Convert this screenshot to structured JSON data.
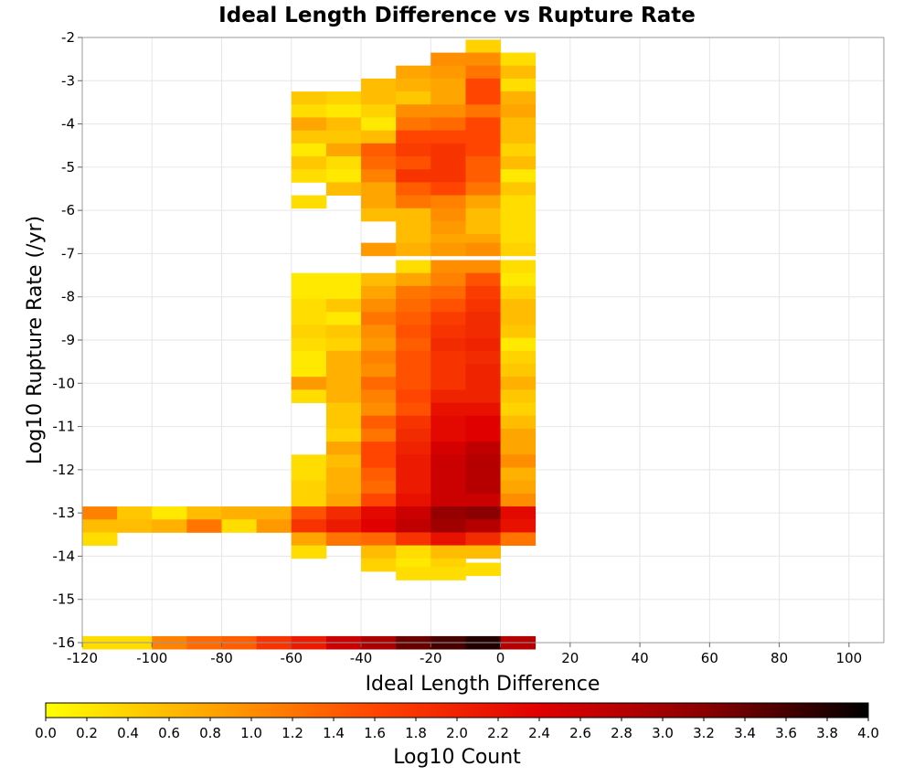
{
  "chart_data": {
    "type": "heatmap",
    "title": "Ideal Length Difference vs Rupture Rate",
    "xlabel": "Ideal Length Difference",
    "ylabel": "Log10 Rupture Rate (/yr)",
    "xlim": [
      -120,
      110
    ],
    "ylim": [
      -16,
      -2
    ],
    "x_ticks": [
      "-120",
      "-100",
      "-80",
      "-60",
      "-40",
      "-20",
      "0",
      "20",
      "40",
      "60",
      "80",
      "100"
    ],
    "y_ticks": [
      "-2",
      "-3",
      "-4",
      "-5",
      "-6",
      "-7",
      "-8",
      "-9",
      "-10",
      "-11",
      "-12",
      "-13",
      "-14",
      "-15",
      "-16"
    ],
    "grid": true,
    "cell_width": 10,
    "cell_height": 0.3,
    "colorbar": {
      "label": "Log10 Count",
      "min": 0,
      "max": 4,
      "ticks": [
        "0.0",
        "0.2",
        "0.4",
        "0.6",
        "0.8",
        "1.0",
        "1.2",
        "1.4",
        "1.6",
        "1.8",
        "2.0",
        "2.2",
        "2.4",
        "2.6",
        "2.8",
        "3.0",
        "3.2",
        "3.4",
        "3.6",
        "3.8",
        "4.0"
      ],
      "colors": [
        "#ffff00",
        "#ffa500",
        "#ff4500",
        "#e00000",
        "#8b0000",
        "#000000"
      ]
    },
    "columns": [
      {
        "x": -120,
        "cells": [
          [
            -13.0,
            1.1
          ],
          [
            -13.3,
            0.6
          ],
          [
            -13.6,
            0.3
          ],
          [
            -16.0,
            0.3
          ]
        ]
      },
      {
        "x": -110,
        "cells": [
          [
            -13.0,
            0.5
          ],
          [
            -13.3,
            0.6
          ],
          [
            -16.0,
            0.3
          ]
        ]
      },
      {
        "x": -100,
        "cells": [
          [
            -13.0,
            0.2
          ],
          [
            -13.3,
            0.7
          ],
          [
            -16.0,
            1.1
          ]
        ]
      },
      {
        "x": -90,
        "cells": [
          [
            -13.0,
            0.6
          ],
          [
            -13.3,
            1.2
          ],
          [
            -16.0,
            1.3
          ]
        ]
      },
      {
        "x": -80,
        "cells": [
          [
            -13.0,
            0.7
          ],
          [
            -13.3,
            0.3
          ],
          [
            -16.0,
            1.4
          ]
        ]
      },
      {
        "x": -70,
        "cells": [
          [
            -13.0,
            0.7
          ],
          [
            -13.3,
            0.9
          ],
          [
            -16.0,
            1.8
          ]
        ]
      },
      {
        "x": -60,
        "cells": [
          [
            -3.4,
            0.5
          ],
          [
            -3.7,
            0.3
          ],
          [
            -4.0,
            0.8
          ],
          [
            -4.3,
            0.5
          ],
          [
            -4.6,
            0.2
          ],
          [
            -4.9,
            0.5
          ],
          [
            -5.2,
            0.3
          ],
          [
            -5.8,
            0.3
          ],
          [
            -7.6,
            0.2
          ],
          [
            -7.9,
            0.2
          ],
          [
            -8.2,
            0.3
          ],
          [
            -8.5,
            0.3
          ],
          [
            -8.8,
            0.4
          ],
          [
            -9.1,
            0.3
          ],
          [
            -9.4,
            0.2
          ],
          [
            -9.7,
            0.2
          ],
          [
            -10.0,
            0.9
          ],
          [
            -10.3,
            0.3
          ],
          [
            -11.8,
            0.3
          ],
          [
            -12.1,
            0.3
          ],
          [
            -12.4,
            0.4
          ],
          [
            -12.7,
            0.4
          ],
          [
            -13.0,
            1.5
          ],
          [
            -13.3,
            1.8
          ],
          [
            -13.6,
            0.8
          ],
          [
            -13.9,
            0.3
          ],
          [
            -16.0,
            2.1
          ]
        ]
      },
      {
        "x": -50,
        "cells": [
          [
            -3.4,
            0.4
          ],
          [
            -3.7,
            0.2
          ],
          [
            -4.0,
            0.6
          ],
          [
            -4.3,
            0.5
          ],
          [
            -4.6,
            0.8
          ],
          [
            -4.9,
            0.3
          ],
          [
            -5.2,
            0.2
          ],
          [
            -5.5,
            0.6
          ],
          [
            -7.6,
            0.2
          ],
          [
            -7.9,
            0.2
          ],
          [
            -8.2,
            0.5
          ],
          [
            -8.5,
            0.2
          ],
          [
            -8.8,
            0.5
          ],
          [
            -9.1,
            0.4
          ],
          [
            -9.4,
            0.7
          ],
          [
            -9.7,
            0.7
          ],
          [
            -10.0,
            0.7
          ],
          [
            -10.3,
            0.7
          ],
          [
            -10.6,
            0.5
          ],
          [
            -10.9,
            0.5
          ],
          [
            -11.2,
            0.4
          ],
          [
            -11.5,
            0.8
          ],
          [
            -11.8,
            0.6
          ],
          [
            -12.1,
            0.7
          ],
          [
            -12.4,
            0.7
          ],
          [
            -12.7,
            0.8
          ],
          [
            -13.0,
            1.9
          ],
          [
            -13.3,
            2.1
          ],
          [
            -13.6,
            1.2
          ],
          [
            -16.0,
            2.6
          ]
        ]
      },
      {
        "x": -40,
        "cells": [
          [
            -3.1,
            0.6
          ],
          [
            -3.4,
            0.6
          ],
          [
            -3.7,
            0.4
          ],
          [
            -4.0,
            0.2
          ],
          [
            -4.3,
            0.6
          ],
          [
            -4.6,
            1.4
          ],
          [
            -4.9,
            1.3
          ],
          [
            -5.2,
            1.1
          ],
          [
            -5.5,
            0.8
          ],
          [
            -5.8,
            0.8
          ],
          [
            -6.1,
            0.6
          ],
          [
            -6.9,
            0.9
          ],
          [
            -7.6,
            0.6
          ],
          [
            -7.9,
            0.8
          ],
          [
            -8.2,
            1.0
          ],
          [
            -8.5,
            1.2
          ],
          [
            -8.8,
            1.0
          ],
          [
            -9.1,
            0.9
          ],
          [
            -9.4,
            1.1
          ],
          [
            -9.7,
            1.0
          ],
          [
            -10.0,
            1.3
          ],
          [
            -10.3,
            1.1
          ],
          [
            -10.6,
            1.0
          ],
          [
            -10.9,
            1.4
          ],
          [
            -11.2,
            1.2
          ],
          [
            -11.5,
            1.6
          ],
          [
            -11.8,
            1.6
          ],
          [
            -12.1,
            1.4
          ],
          [
            -12.4,
            1.3
          ],
          [
            -12.7,
            1.6
          ],
          [
            -13.0,
            2.3
          ],
          [
            -13.3,
            2.4
          ],
          [
            -13.6,
            1.3
          ],
          [
            -13.9,
            0.6
          ],
          [
            -14.2,
            0.4
          ],
          [
            -16.0,
            2.9
          ]
        ]
      },
      {
        "x": -30,
        "cells": [
          [
            -2.8,
            0.8
          ],
          [
            -3.1,
            0.7
          ],
          [
            -3.4,
            0.5
          ],
          [
            -3.7,
            1.0
          ],
          [
            -4.0,
            1.2
          ],
          [
            -4.3,
            1.6
          ],
          [
            -4.6,
            1.7
          ],
          [
            -4.9,
            1.5
          ],
          [
            -5.2,
            1.8
          ],
          [
            -5.5,
            1.4
          ],
          [
            -5.8,
            1.2
          ],
          [
            -6.1,
            0.6
          ],
          [
            -6.4,
            0.6
          ],
          [
            -6.7,
            0.6
          ],
          [
            -6.9,
            0.7
          ],
          [
            -7.3,
            0.3
          ],
          [
            -7.6,
            0.8
          ],
          [
            -7.9,
            1.2
          ],
          [
            -8.2,
            1.3
          ],
          [
            -8.5,
            1.4
          ],
          [
            -8.8,
            1.5
          ],
          [
            -9.1,
            1.4
          ],
          [
            -9.4,
            1.5
          ],
          [
            -9.7,
            1.5
          ],
          [
            -10.0,
            1.5
          ],
          [
            -10.3,
            1.6
          ],
          [
            -10.6,
            1.5
          ],
          [
            -10.9,
            1.8
          ],
          [
            -11.2,
            1.9
          ],
          [
            -11.5,
            2.0
          ],
          [
            -11.8,
            2.1
          ],
          [
            -12.1,
            2.1
          ],
          [
            -12.4,
            2.1
          ],
          [
            -12.7,
            2.2
          ],
          [
            -13.0,
            2.6
          ],
          [
            -13.3,
            2.7
          ],
          [
            -13.6,
            1.8
          ],
          [
            -13.9,
            0.3
          ],
          [
            -14.2,
            0.2
          ],
          [
            -14.4,
            0.3
          ],
          [
            -16.0,
            3.4
          ]
        ]
      },
      {
        "x": -20,
        "cells": [
          [
            -2.5,
            1.0
          ],
          [
            -2.8,
            0.9
          ],
          [
            -3.1,
            0.8
          ],
          [
            -3.4,
            0.8
          ],
          [
            -3.7,
            1.0
          ],
          [
            -4.0,
            1.3
          ],
          [
            -4.3,
            1.6
          ],
          [
            -4.6,
            1.8
          ],
          [
            -4.9,
            1.8
          ],
          [
            -5.2,
            1.8
          ],
          [
            -5.5,
            1.6
          ],
          [
            -5.8,
            1.1
          ],
          [
            -6.1,
            1.0
          ],
          [
            -6.4,
            0.9
          ],
          [
            -6.7,
            0.8
          ],
          [
            -6.9,
            0.9
          ],
          [
            -7.3,
            1.0
          ],
          [
            -7.6,
            1.1
          ],
          [
            -7.9,
            1.3
          ],
          [
            -8.2,
            1.5
          ],
          [
            -8.5,
            1.7
          ],
          [
            -8.8,
            1.8
          ],
          [
            -9.1,
            1.9
          ],
          [
            -9.4,
            1.8
          ],
          [
            -9.7,
            1.8
          ],
          [
            -10.0,
            1.8
          ],
          [
            -10.3,
            2.0
          ],
          [
            -10.6,
            2.2
          ],
          [
            -10.9,
            2.3
          ],
          [
            -11.2,
            2.3
          ],
          [
            -11.5,
            2.5
          ],
          [
            -11.8,
            2.6
          ],
          [
            -12.1,
            2.6
          ],
          [
            -12.4,
            2.6
          ],
          [
            -12.7,
            2.6
          ],
          [
            -13.0,
            3.1
          ],
          [
            -13.3,
            3.0
          ],
          [
            -13.6,
            2.2
          ],
          [
            -13.9,
            0.6
          ],
          [
            -14.2,
            0.4
          ],
          [
            -14.4,
            0.3
          ],
          [
            -16.0,
            3.6
          ]
        ]
      },
      {
        "x": -10,
        "cells": [
          [
            -2.2,
            0.4
          ],
          [
            -2.5,
            1.0
          ],
          [
            -2.8,
            1.2
          ],
          [
            -3.1,
            1.6
          ],
          [
            -3.4,
            1.6
          ],
          [
            -3.7,
            1.2
          ],
          [
            -4.0,
            1.6
          ],
          [
            -4.3,
            1.6
          ],
          [
            -4.6,
            1.6
          ],
          [
            -4.9,
            1.4
          ],
          [
            -5.2,
            1.4
          ],
          [
            -5.5,
            1.2
          ],
          [
            -5.8,
            0.8
          ],
          [
            -6.1,
            0.6
          ],
          [
            -6.4,
            0.6
          ],
          [
            -6.7,
            0.8
          ],
          [
            -6.9,
            1.0
          ],
          [
            -7.3,
            1.0
          ],
          [
            -7.6,
            1.5
          ],
          [
            -7.9,
            1.7
          ],
          [
            -8.2,
            1.8
          ],
          [
            -8.5,
            1.9
          ],
          [
            -8.8,
            1.9
          ],
          [
            -9.1,
            2.0
          ],
          [
            -9.4,
            1.9
          ],
          [
            -9.7,
            2.0
          ],
          [
            -10.0,
            2.0
          ],
          [
            -10.3,
            2.0
          ],
          [
            -10.6,
            2.2
          ],
          [
            -10.9,
            2.4
          ],
          [
            -11.2,
            2.4
          ],
          [
            -11.5,
            2.7
          ],
          [
            -11.8,
            2.8
          ],
          [
            -12.1,
            2.8
          ],
          [
            -12.4,
            2.8
          ],
          [
            -12.7,
            2.6
          ],
          [
            -13.0,
            3.2
          ],
          [
            -13.3,
            2.8
          ],
          [
            -13.6,
            1.9
          ],
          [
            -13.9,
            0.6
          ],
          [
            -14.3,
            0.3
          ],
          [
            -16.0,
            3.8
          ]
        ]
      },
      {
        "x": 0,
        "cells": [
          [
            -2.5,
            0.3
          ],
          [
            -2.8,
            0.6
          ],
          [
            -3.1,
            0.3
          ],
          [
            -3.4,
            0.7
          ],
          [
            -3.7,
            0.8
          ],
          [
            -4.0,
            0.6
          ],
          [
            -4.3,
            0.6
          ],
          [
            -4.6,
            0.4
          ],
          [
            -4.9,
            0.6
          ],
          [
            -5.2,
            0.2
          ],
          [
            -5.5,
            0.5
          ],
          [
            -5.8,
            0.3
          ],
          [
            -6.1,
            0.3
          ],
          [
            -6.4,
            0.3
          ],
          [
            -6.7,
            0.3
          ],
          [
            -6.9,
            0.4
          ],
          [
            -7.3,
            0.3
          ],
          [
            -7.6,
            0.2
          ],
          [
            -7.9,
            0.4
          ],
          [
            -8.2,
            0.6
          ],
          [
            -8.5,
            0.6
          ],
          [
            -8.8,
            0.5
          ],
          [
            -9.1,
            0.2
          ],
          [
            -9.4,
            0.4
          ],
          [
            -9.7,
            0.5
          ],
          [
            -10.0,
            0.7
          ],
          [
            -10.3,
            0.5
          ],
          [
            -10.6,
            0.4
          ],
          [
            -10.9,
            0.6
          ],
          [
            -11.2,
            0.8
          ],
          [
            -11.5,
            0.8
          ],
          [
            -11.8,
            1.0
          ],
          [
            -12.1,
            0.7
          ],
          [
            -12.4,
            0.8
          ],
          [
            -12.7,
            1.0
          ],
          [
            -13.0,
            2.3
          ],
          [
            -13.3,
            2.2
          ],
          [
            -13.6,
            1.2
          ],
          [
            -16.0,
            2.8
          ]
        ]
      }
    ]
  }
}
